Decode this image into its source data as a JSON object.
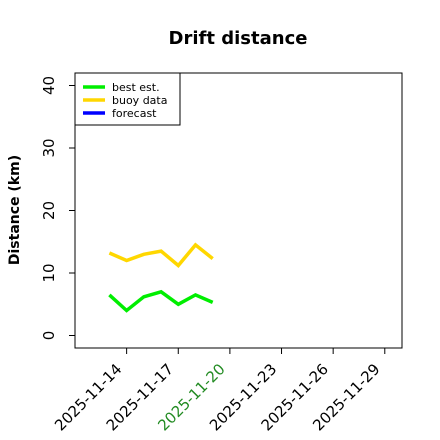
{
  "chart_data": {
    "type": "line",
    "title": "Drift distance",
    "xlabel": "",
    "ylabel": "Distance (km)",
    "ylim": [
      -2,
      42
    ],
    "xlim": [
      "2025-11-11",
      "2025-11-30"
    ],
    "yticks": [
      0,
      10,
      20,
      30,
      40
    ],
    "xticks": [
      {
        "label": "2025-11-14",
        "color": "#000000"
      },
      {
        "label": "2025-11-17",
        "color": "#000000"
      },
      {
        "label": "2025-11-20",
        "color": "#228b22"
      },
      {
        "label": "2025-11-23",
        "color": "#000000"
      },
      {
        "label": "2025-11-26",
        "color": "#000000"
      },
      {
        "label": "2025-11-29",
        "color": "#000000"
      }
    ],
    "legend_position": "top-left",
    "grid": false,
    "series": [
      {
        "name": "best est.",
        "color": "#00ee00",
        "x": [
          "2025-11-13",
          "2025-11-14",
          "2025-11-15",
          "2025-11-16",
          "2025-11-17",
          "2025-11-18",
          "2025-11-19"
        ],
        "values": [
          6.5,
          4.0,
          6.2,
          7.0,
          5.0,
          6.5,
          5.3
        ]
      },
      {
        "name": "buoy data",
        "color": "#ffd700",
        "x": [
          "2025-11-13",
          "2025-11-14",
          "2025-11-15",
          "2025-11-16",
          "2025-11-17",
          "2025-11-18",
          "2025-11-19"
        ],
        "values": [
          13.2,
          12.0,
          13.0,
          13.5,
          11.2,
          14.5,
          12.3
        ]
      },
      {
        "name": "forecast",
        "color": "#0000ff",
        "x": [],
        "values": []
      }
    ]
  }
}
